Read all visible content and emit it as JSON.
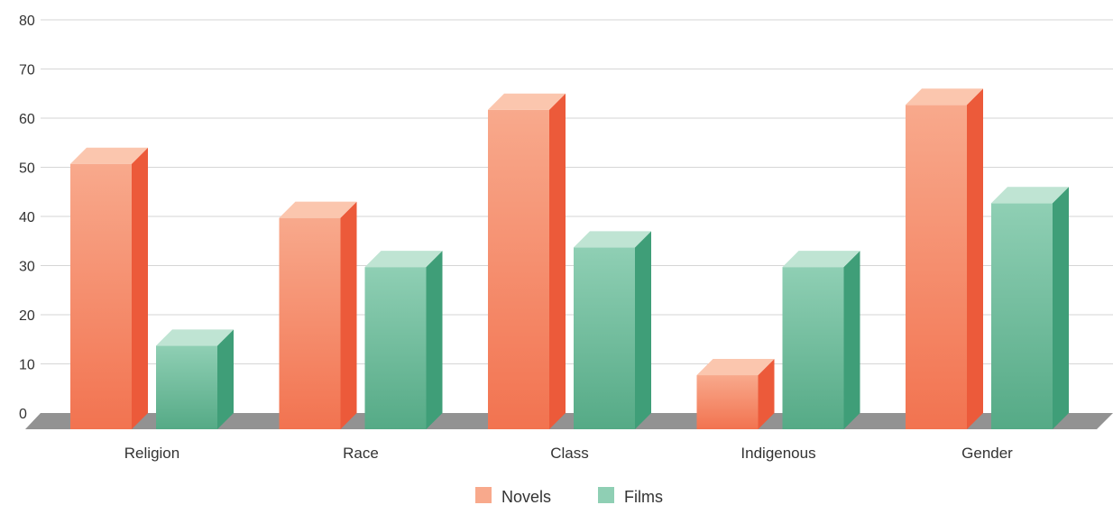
{
  "chart_data": {
    "type": "bar",
    "categories": [
      "Religion",
      "Race",
      "Class",
      "Indigenous",
      "Gender"
    ],
    "series": [
      {
        "name": "Novels",
        "values": [
          54,
          43,
          65,
          11,
          66
        ]
      },
      {
        "name": "Films",
        "values": [
          17,
          33,
          37,
          33,
          46
        ]
      }
    ],
    "y_ticks": [
      0,
      10,
      20,
      30,
      40,
      50,
      60,
      70,
      80
    ],
    "ylim": [
      0,
      80
    ],
    "grid": true,
    "legend": "bottom-center",
    "style": "3d-column",
    "colors": {
      "novels_front_top": "#f8a98c",
      "novels_front_bottom": "#f27350",
      "novels_side": "#ec5a3a",
      "novels_top": "#fbc6ae",
      "films_front_top": "#8fcfb4",
      "films_front_bottom": "#55aa86",
      "films_side": "#3f9e78",
      "films_top": "#bfe4d3",
      "floor": "#929292",
      "grid": "#d6d6d6",
      "text": "#333333"
    }
  }
}
